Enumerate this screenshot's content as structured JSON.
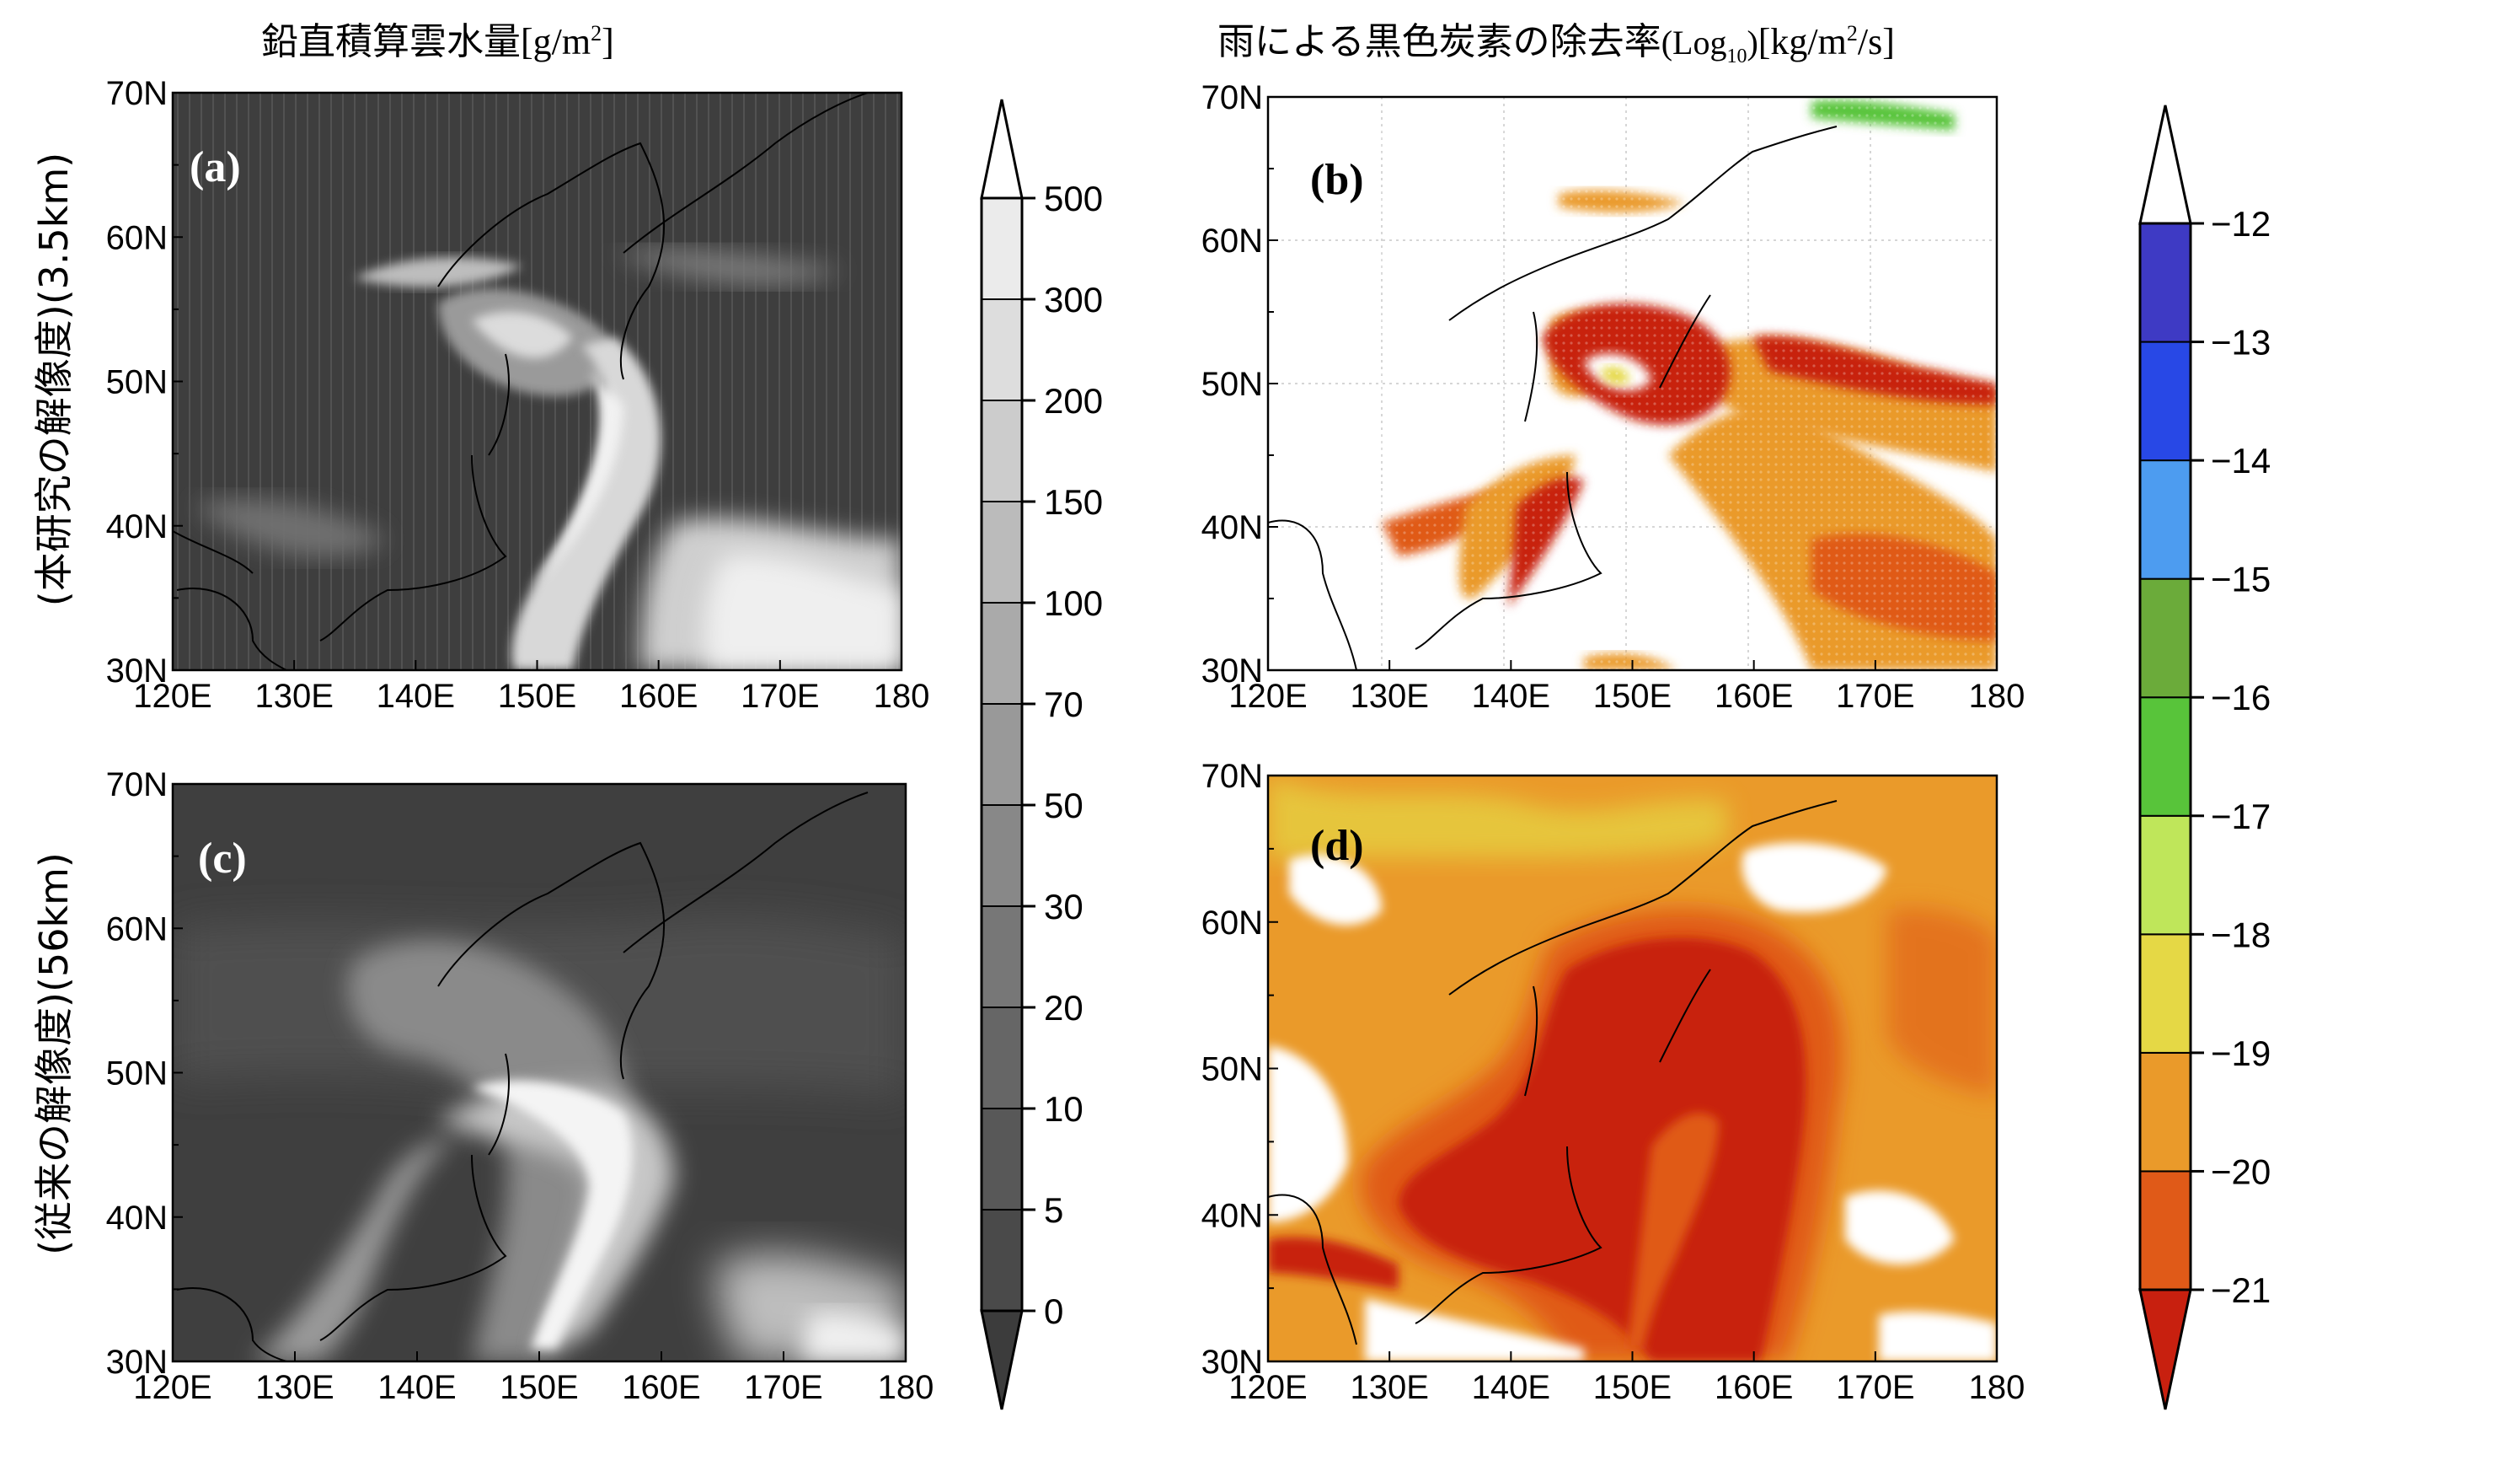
{
  "titles": {
    "left_main": "鉛直積算雲水量",
    "left_unit_pre": "[g/m",
    "left_unit_sup": "2",
    "left_unit_post": "]",
    "right_main": "雨による黒色炭素の除去率",
    "right_paren_pre": "(Log",
    "right_paren_sub": "10",
    "right_paren_post": ")",
    "right_unit_pre": "[kg/m",
    "right_unit_sup": "2",
    "right_unit_post": "/s]"
  },
  "row_labels": {
    "top": "(本研究の解像度)(3.5km)",
    "bottom": "(従来の解像度)(56km)"
  },
  "panel_labels": [
    "(a)",
    "(b)",
    "(c)",
    "(d)"
  ],
  "axes": {
    "x_ticks": [
      "120E",
      "130E",
      "140E",
      "150E",
      "160E",
      "170E",
      "180"
    ],
    "y_ticks": [
      "30N",
      "40N",
      "50N",
      "60N",
      "70N"
    ]
  },
  "colorbar_left": {
    "ticks": [
      "0",
      "5",
      "10",
      "20",
      "30",
      "50",
      "70",
      "100",
      "150",
      "200",
      "300",
      "500"
    ],
    "colors": [
      "#3c3c3c",
      "#4a4a4a",
      "#585858",
      "#666666",
      "#777777",
      "#888888",
      "#999999",
      "#aaaaaa",
      "#bbbbbb",
      "#cccccc",
      "#dddddd",
      "#ebebeb",
      "#ffffff"
    ]
  },
  "colorbar_right": {
    "ticks": [
      "−12",
      "−13",
      "−14",
      "−15",
      "−16",
      "−17",
      "−18",
      "−19",
      "−20",
      "−21"
    ],
    "colors": [
      "#c8200f",
      "#e05a18",
      "#ea9a2a",
      "#e5d845",
      "#bfe65a",
      "#58c43a",
      "#6bab3a",
      "#4d9cf0",
      "#2848e6",
      "#3e3ac4",
      "#ffffff"
    ]
  },
  "chart_data": [
    {
      "type": "heatmap",
      "panel": "(a)",
      "quantity": "鉛直積算雲水量",
      "unit": "g/m2",
      "resolution": "3.5km",
      "xlim": [
        120,
        180
      ],
      "ylim": [
        30,
        70
      ]
    },
    {
      "type": "heatmap",
      "panel": "(b)",
      "quantity": "雨による黒色炭素の除去率",
      "unit": "kg/m2/s (Log10)",
      "resolution": "3.5km",
      "xlim": [
        120,
        180
      ],
      "ylim": [
        30,
        70
      ]
    },
    {
      "type": "heatmap",
      "panel": "(c)",
      "quantity": "鉛直積算雲水量",
      "unit": "g/m2",
      "resolution": "56km",
      "xlim": [
        120,
        180
      ],
      "ylim": [
        30,
        70
      ]
    },
    {
      "type": "heatmap",
      "panel": "(d)",
      "quantity": "雨による黒色炭素の除去率",
      "unit": "kg/m2/s (Log10)",
      "resolution": "56km",
      "xlim": [
        120,
        180
      ],
      "ylim": [
        30,
        70
      ]
    }
  ]
}
